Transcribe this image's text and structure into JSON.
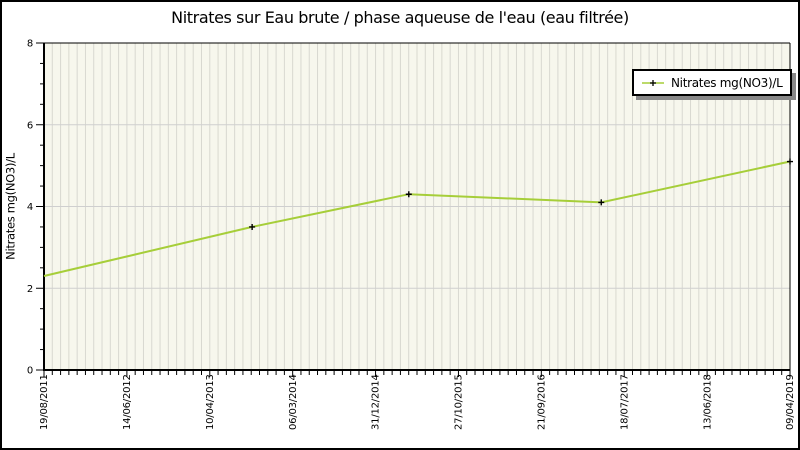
{
  "colors": {
    "line": "#a6ce39",
    "marker": "#000000",
    "plot_bg": "#f7f7ed",
    "grid_vertical": "#d8d8d0",
    "grid_horizontal": "#cfcfcf",
    "axis": "#000000",
    "text": "#000000",
    "legend_shadow": "#888888",
    "border": "#000000"
  },
  "chart_data": {
    "type": "line",
    "title": "Nitrates sur Eau brute / phase aqueuse de l'eau (eau filtrée)",
    "ylabel": "Nitrates mg(NO3)/L",
    "xlabel": "",
    "ylim": [
      0,
      8
    ],
    "y_tick_labels": [
      "0",
      "2",
      "4",
      "6",
      "8"
    ],
    "y_minor_step": 0.5,
    "x_tick_labels": [
      "19/08/2011",
      "14/06/2012",
      "10/04/2013",
      "06/03/2014",
      "31/12/2014",
      "27/10/2015",
      "21/09/2016",
      "18/07/2017",
      "13/06/2018",
      "09/04/2019"
    ],
    "x_minor_divisions_per_major": 10,
    "grid": {
      "vertical_gridlines": "every minor division (monthly)",
      "horizontal_gridlines_at": [
        2,
        4,
        6
      ]
    },
    "legend": {
      "label": "Nitrates mg(NO3)/L",
      "position": "top-right"
    },
    "series": [
      {
        "name": "Nitrates mg(NO3)/L",
        "color": "#a6ce39",
        "marker": "plus",
        "marker_color": "#000000",
        "points": [
          {
            "x_frac": 0.0,
            "date": "19/08/2011",
            "value": 2.3,
            "marker": false
          },
          {
            "x_frac": 0.279,
            "date": "≈10/2013",
            "value": 3.5
          },
          {
            "x_frac": 0.489,
            "date": "≈05/2015",
            "value": 4.3
          },
          {
            "x_frac": 0.747,
            "date": "≈05/2017",
            "value": 4.1
          },
          {
            "x_frac": 1.0,
            "date": "09/04/2019",
            "value": 5.1
          }
        ]
      }
    ]
  }
}
